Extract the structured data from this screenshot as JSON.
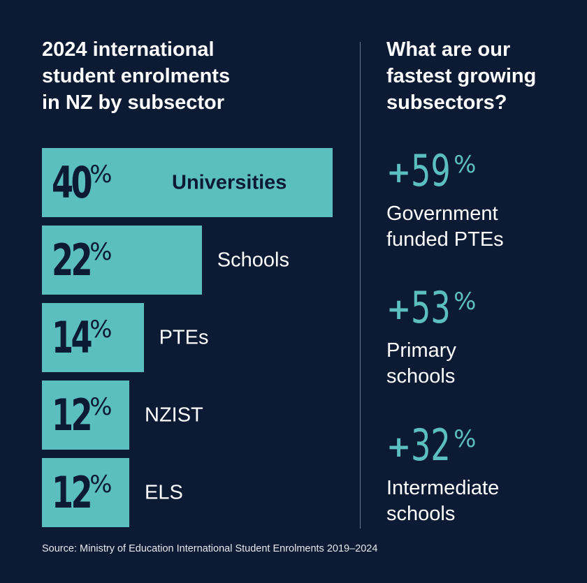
{
  "left_title": "2024 international\nstudent enrolments\nin NZ by subsector",
  "right_title": "What are our\nfastest growing\nsubsectors?",
  "chart_data": {
    "type": "bar",
    "orientation": "horizontal",
    "title": "2024 international student enrolments in NZ by subsector",
    "categories": [
      "Universities",
      "Schools",
      "PTEs",
      "NZIST",
      "ELS"
    ],
    "values": [
      40,
      22,
      14,
      12,
      12
    ],
    "value_labels": [
      "40",
      "22",
      "14",
      "12",
      "12"
    ],
    "unit": "%",
    "bar_color": "#5cbfbf"
  },
  "growth": [
    {
      "value": "59",
      "label": "Government\nfunded PTEs"
    },
    {
      "value": "53",
      "label": "Primary\nschools"
    },
    {
      "value": "32",
      "label": "Intermediate\nschools"
    }
  ],
  "plus_sign": "+",
  "percent_sign": "%",
  "source": "Source: Ministry of Education International Student Enrolments 2019–2024",
  "colors": {
    "background": "#0c1b33",
    "accent": "#5cbfbf",
    "text": "#ffffff"
  }
}
